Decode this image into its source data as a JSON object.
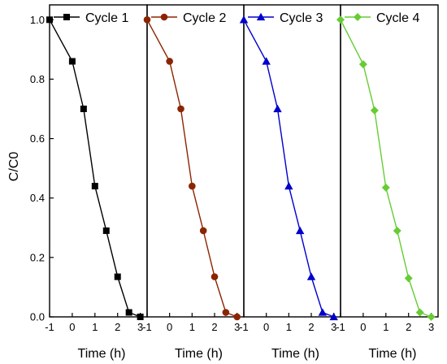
{
  "chart_data": {
    "type": "line",
    "ylabel": "C/C0",
    "ylim": [
      0,
      1.05
    ],
    "yticks": [
      0.0,
      0.2,
      0.4,
      0.6,
      0.8,
      1.0
    ],
    "ytick_labels": [
      "0.0",
      "0.2",
      "0.4",
      "0.6",
      "0.8",
      "1.0"
    ],
    "grid": false,
    "legend_placement": "top of each panel",
    "panels": [
      {
        "name": "Cycle 1",
        "color": "#000000",
        "marker": "square",
        "xlabel": "Time (h)",
        "xlim": [
          -1,
          3.3
        ],
        "xticks": [
          -1,
          0,
          1,
          2,
          3
        ],
        "xtick_labels": [
          "-1",
          "0",
          "1",
          "2",
          "3"
        ],
        "x": [
          -1,
          0,
          0.5,
          1,
          1.5,
          2,
          2.5,
          3
        ],
        "y": [
          1.0,
          0.86,
          0.7,
          0.44,
          0.29,
          0.135,
          0.015,
          0.0
        ]
      },
      {
        "name": "Cycle 2",
        "color": "#8b2500",
        "marker": "circle",
        "xlabel": "Time (h)",
        "xlim": [
          -1,
          3.3
        ],
        "xticks": [
          -1,
          0,
          1,
          2,
          3
        ],
        "xtick_labels": [
          "-1",
          "0",
          "1",
          "2",
          "3"
        ],
        "x": [
          -1,
          0,
          0.5,
          1,
          1.5,
          2,
          2.5,
          3
        ],
        "y": [
          1.0,
          0.86,
          0.7,
          0.44,
          0.29,
          0.135,
          0.015,
          0.0
        ]
      },
      {
        "name": "Cycle 3",
        "color": "#0000cc",
        "marker": "triangle",
        "xlabel": "Time (h)",
        "xlim": [
          -1,
          3.3
        ],
        "xticks": [
          -1,
          0,
          1,
          2,
          3
        ],
        "xtick_labels": [
          "-1",
          "0",
          "1",
          "2",
          "3"
        ],
        "x": [
          -1,
          0,
          0.5,
          1,
          1.5,
          2,
          2.5,
          3
        ],
        "y": [
          1.0,
          0.86,
          0.7,
          0.44,
          0.29,
          0.135,
          0.015,
          0.0
        ]
      },
      {
        "name": "Cycle 4",
        "color": "#66cc33",
        "marker": "diamond",
        "xlabel": "Time (h)",
        "xlim": [
          -1,
          3.3
        ],
        "xticks": [
          -1,
          0,
          1,
          2,
          3
        ],
        "xtick_labels": [
          "-1",
          "0",
          "1",
          "2",
          "3"
        ],
        "x": [
          -1,
          0,
          0.5,
          1,
          1.5,
          2,
          2.5,
          3
        ],
        "y": [
          1.0,
          0.85,
          0.695,
          0.435,
          0.29,
          0.13,
          0.015,
          0.0
        ]
      }
    ]
  }
}
